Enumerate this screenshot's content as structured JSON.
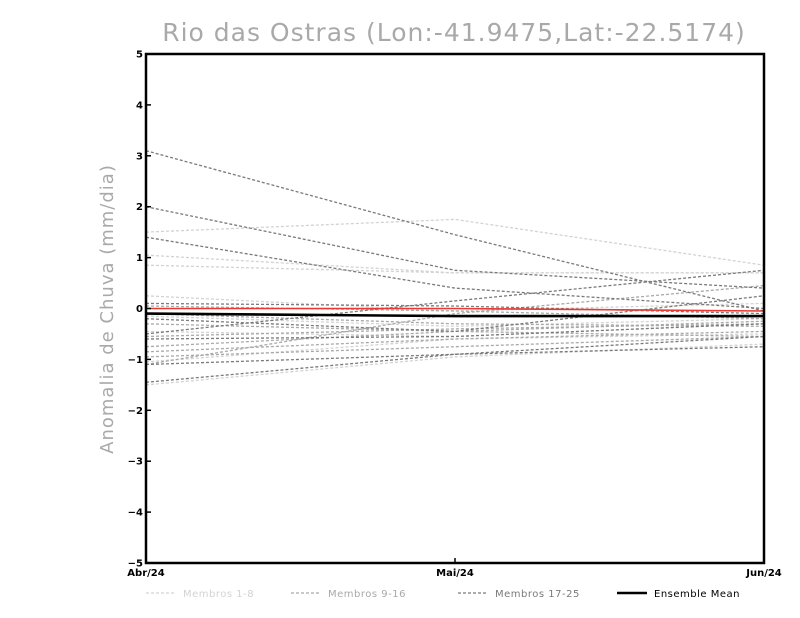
{
  "chart_data": {
    "type": "line",
    "title": "Rio das Ostras (Lon:-41.9475,Lat:-22.5174)",
    "xlabel": "",
    "ylabel": "Anomalia de Chuva (mm/dia)",
    "x": [
      "Abr/24",
      "Mai/24",
      "Jun/24"
    ],
    "ylim": [
      -5,
      5
    ],
    "yticks": [
      -5,
      -4,
      -3,
      -2,
      -1,
      0,
      1,
      2,
      3,
      4,
      5
    ],
    "grid": false,
    "legend_position": "bottom",
    "series": [
      {
        "group": 0,
        "values": [
          1.5,
          1.75,
          0.85
        ]
      },
      {
        "group": 0,
        "values": [
          1.05,
          0.7,
          0.7
        ]
      },
      {
        "group": 0,
        "values": [
          0.85,
          0.7,
          0.7
        ]
      },
      {
        "group": 0,
        "values": [
          0.25,
          -0.05,
          0.1
        ]
      },
      {
        "group": 0,
        "values": [
          -0.15,
          -0.35,
          -0.2
        ]
      },
      {
        "group": 0,
        "values": [
          -0.45,
          -0.55,
          -0.3
        ]
      },
      {
        "group": 0,
        "values": [
          -1.05,
          -0.6,
          -0.5
        ]
      },
      {
        "group": 0,
        "values": [
          -1.5,
          -0.95,
          -0.7
        ]
      },
      {
        "group": 1,
        "values": [
          0.05,
          -0.05,
          -0.2
        ]
      },
      {
        "group": 1,
        "values": [
          -0.1,
          -0.3,
          -0.35
        ]
      },
      {
        "group": 1,
        "values": [
          -0.3,
          -0.45,
          -0.25
        ]
      },
      {
        "group": 1,
        "values": [
          -0.55,
          -0.4,
          -0.3
        ]
      },
      {
        "group": 1,
        "values": [
          -0.75,
          -0.45,
          -0.55
        ]
      },
      {
        "group": 1,
        "values": [
          -0.85,
          -0.6,
          -0.45
        ]
      },
      {
        "group": 1,
        "values": [
          -0.95,
          -0.75,
          -0.55
        ]
      },
      {
        "group": 1,
        "values": [
          -1.1,
          -0.1,
          0.45
        ]
      },
      {
        "group": 2,
        "values": [
          3.1,
          1.45,
          -0.05
        ]
      },
      {
        "group": 2,
        "values": [
          2.0,
          0.75,
          0.4
        ]
      },
      {
        "group": 2,
        "values": [
          1.4,
          0.4,
          0.0
        ]
      },
      {
        "group": 2,
        "values": [
          0.1,
          0.05,
          -0.1
        ]
      },
      {
        "group": 2,
        "values": [
          -0.2,
          -0.45,
          0.25
        ]
      },
      {
        "group": 2,
        "values": [
          -0.5,
          0.15,
          0.75
        ]
      },
      {
        "group": 2,
        "values": [
          -0.6,
          -0.55,
          -0.3
        ]
      },
      {
        "group": 2,
        "values": [
          -1.1,
          -0.9,
          -0.55
        ]
      },
      {
        "group": 2,
        "values": [
          -1.45,
          -0.9,
          -0.75
        ]
      },
      {
        "group": 3,
        "values": [
          -0.1,
          -0.15,
          -0.15
        ]
      },
      {
        "group": 4,
        "values": [
          0.0,
          0.0,
          -0.05
        ]
      }
    ],
    "legend": [
      {
        "label": "Membros 1-8",
        "color": "#d3d3d3",
        "dashed": true
      },
      {
        "label": "Membros 9-16",
        "color": "#a9a9a9",
        "dashed": true
      },
      {
        "label": "Membros 17-25",
        "color": "#808080",
        "dashed": true
      },
      {
        "label": "Ensemble Mean",
        "color": "#000000",
        "dashed": false
      }
    ],
    "colors": {
      "members_1_8": "#d3d3d3",
      "members_9_16": "#a9a9a9",
      "members_17_25": "#7a7a7a",
      "ensemble_mean": "#000000",
      "red_line": "#e8382f",
      "title": "#a9a9a9"
    }
  }
}
